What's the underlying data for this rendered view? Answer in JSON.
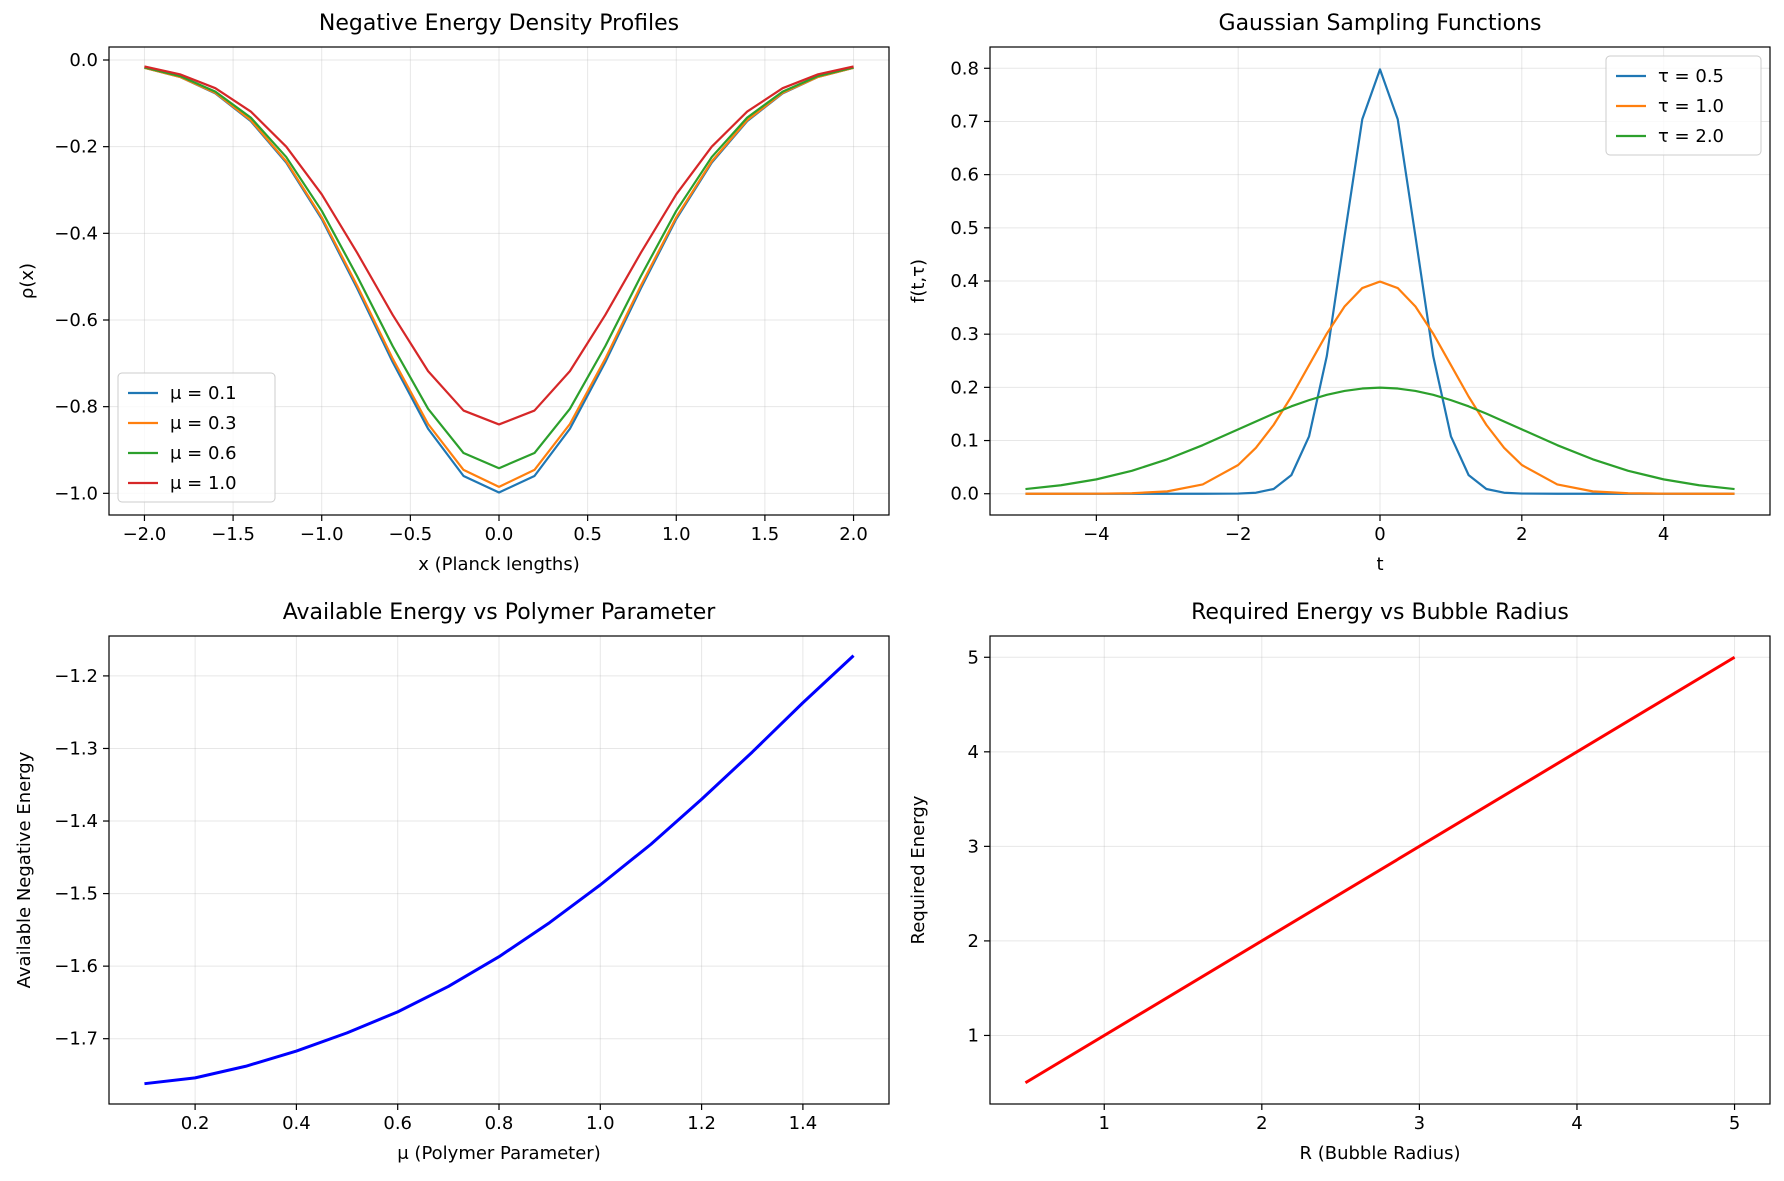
{
  "chart_data": [
    {
      "id": "p1",
      "type": "line",
      "title": "Negative Energy Density Profiles",
      "xlabel": "x (Planck lengths)",
      "ylabel": "ρ(x)",
      "xlim": [
        -2.2,
        2.2
      ],
      "ylim": [
        -1.05,
        0.03
      ],
      "xticks": [
        -2.0,
        -1.5,
        -1.0,
        -0.5,
        0.0,
        0.5,
        1.0,
        1.5,
        2.0
      ],
      "xtick_labels": [
        "−2.0",
        "−1.5",
        "−1.0",
        "−0.5",
        "0.0",
        "0.5",
        "1.0",
        "1.5",
        "2.0"
      ],
      "yticks": [
        -1.0,
        -0.8,
        -0.6,
        -0.4,
        -0.2,
        0.0
      ],
      "ytick_labels": [
        "−1.0",
        "−0.8",
        "−0.6",
        "−0.4",
        "−0.2",
        "0.0"
      ],
      "grid": true,
      "legend": "lower-left",
      "x": [
        -2.0,
        -1.8,
        -1.6,
        -1.4,
        -1.2,
        -1.0,
        -0.8,
        -0.6,
        -0.4,
        -0.2,
        0.0,
        0.2,
        0.4,
        0.6,
        0.8,
        1.0,
        1.2,
        1.4,
        1.6,
        1.8,
        2.0
      ],
      "series": [
        {
          "name": "μ = 0.1",
          "color": "#1f77b4",
          "values": [
            -0.018,
            -0.039,
            -0.077,
            -0.141,
            -0.237,
            -0.367,
            -0.527,
            -0.697,
            -0.851,
            -0.96,
            -0.998,
            -0.96,
            -0.851,
            -0.697,
            -0.527,
            -0.367,
            -0.237,
            -0.141,
            -0.077,
            -0.039,
            -0.018
          ]
        },
        {
          "name": "μ = 0.3",
          "color": "#ff7f0e",
          "values": [
            -0.018,
            -0.039,
            -0.076,
            -0.139,
            -0.234,
            -0.363,
            -0.521,
            -0.689,
            -0.84,
            -0.946,
            -0.985,
            -0.946,
            -0.84,
            -0.689,
            -0.521,
            -0.363,
            -0.234,
            -0.139,
            -0.076,
            -0.039,
            -0.018
          ]
        },
        {
          "name": "μ = 0.6",
          "color": "#2ca02c",
          "values": [
            -0.017,
            -0.037,
            -0.073,
            -0.133,
            -0.224,
            -0.348,
            -0.499,
            -0.66,
            -0.805,
            -0.907,
            -0.942,
            -0.907,
            -0.805,
            -0.66,
            -0.499,
            -0.348,
            -0.224,
            -0.133,
            -0.073,
            -0.037,
            -0.017
          ]
        },
        {
          "name": "μ = 1.0",
          "color": "#d62728",
          "values": [
            -0.015,
            -0.033,
            -0.065,
            -0.119,
            -0.2,
            -0.31,
            -0.445,
            -0.588,
            -0.718,
            -0.809,
            -0.841,
            -0.809,
            -0.718,
            -0.588,
            -0.445,
            -0.31,
            -0.2,
            -0.119,
            -0.065,
            -0.033,
            -0.015
          ]
        }
      ]
    },
    {
      "id": "p2",
      "type": "line",
      "title": "Gaussian Sampling Functions",
      "xlabel": "t",
      "ylabel": "f(t,τ)",
      "xlim": [
        -5.5,
        5.5
      ],
      "ylim": [
        -0.04,
        0.84
      ],
      "xticks": [
        -4,
        -2,
        0,
        2,
        4
      ],
      "xtick_labels": [
        "−4",
        "−2",
        "0",
        "2",
        "4"
      ],
      "yticks": [
        0.0,
        0.1,
        0.2,
        0.3,
        0.4,
        0.5,
        0.6,
        0.7,
        0.8
      ],
      "ytick_labels": [
        "0.0",
        "0.1",
        "0.2",
        "0.3",
        "0.4",
        "0.5",
        "0.6",
        "0.7",
        "0.8"
      ],
      "grid": true,
      "legend": "top-right",
      "x": [
        -5.0,
        -4.5,
        -4.0,
        -3.5,
        -3.0,
        -2.5,
        -2.0,
        -1.75,
        -1.5,
        -1.25,
        -1.0,
        -0.75,
        -0.5,
        -0.25,
        0.0,
        0.25,
        0.5,
        0.75,
        1.0,
        1.25,
        1.5,
        1.75,
        2.0,
        2.5,
        3.0,
        3.5,
        4.0,
        4.5,
        5.0
      ],
      "series": [
        {
          "name": "τ = 0.5",
          "color": "#1f77b4",
          "values": [
            0,
            0,
            0,
            0,
            0,
            0,
            0.0003,
            0.0019,
            0.0089,
            0.035,
            0.108,
            0.259,
            0.4839,
            0.7041,
            0.7979,
            0.7041,
            0.4839,
            0.259,
            0.108,
            0.035,
            0.0089,
            0.0019,
            0.0003,
            0,
            0,
            0,
            0,
            0,
            0
          ]
        },
        {
          "name": "τ = 1.0",
          "color": "#ff7f0e",
          "values": [
            0,
            0,
            0.0001,
            0.0009,
            0.0044,
            0.0175,
            0.054,
            0.0863,
            0.1295,
            0.1826,
            0.242,
            0.3011,
            0.3521,
            0.3867,
            0.3989,
            0.3867,
            0.3521,
            0.3011,
            0.242,
            0.1826,
            0.1295,
            0.0863,
            0.054,
            0.0175,
            0.0044,
            0.0009,
            0.0001,
            0,
            0
          ]
        },
        {
          "name": "τ = 2.0",
          "color": "#2ca02c",
          "values": [
            0.0088,
            0.0159,
            0.027,
            0.0431,
            0.0648,
            0.0913,
            0.121,
            0.1359,
            0.1506,
            0.1643,
            0.176,
            0.186,
            0.1933,
            0.1978,
            0.1995,
            0.1978,
            0.1933,
            0.186,
            0.176,
            0.1643,
            0.1506,
            0.1359,
            0.121,
            0.0913,
            0.0648,
            0.0431,
            0.027,
            0.0159,
            0.0088
          ]
        }
      ]
    },
    {
      "id": "p3",
      "type": "line",
      "title": "Available Energy vs Polymer Parameter",
      "xlabel": "μ (Polymer Parameter)",
      "ylabel": "Available Negative Energy",
      "xlim": [
        0.03,
        1.57
      ],
      "ylim": [
        -1.79,
        -1.145
      ],
      "xticks": [
        0.2,
        0.4,
        0.6,
        0.8,
        1.0,
        1.2,
        1.4
      ],
      "xtick_labels": [
        "0.2",
        "0.4",
        "0.6",
        "0.8",
        "1.0",
        "1.2",
        "1.4"
      ],
      "yticks": [
        -1.7,
        -1.6,
        -1.5,
        -1.4,
        -1.3,
        -1.2
      ],
      "ytick_labels": [
        "−1.7",
        "−1.6",
        "−1.5",
        "−1.4",
        "−1.3",
        "−1.2"
      ],
      "grid": true,
      "x": [
        0.1,
        0.2,
        0.3,
        0.4,
        0.5,
        0.6,
        0.7,
        0.8,
        0.9,
        1.0,
        1.1,
        1.2,
        1.3,
        1.4,
        1.5
      ],
      "series": [
        {
          "color": "#0000ff",
          "values": [
            -1.762,
            -1.754,
            -1.738,
            -1.717,
            -1.692,
            -1.663,
            -1.628,
            -1.587,
            -1.54,
            -1.488,
            -1.432,
            -1.37,
            -1.305,
            -1.237,
            -1.172
          ]
        }
      ]
    },
    {
      "id": "p4",
      "type": "line",
      "title": "Required Energy vs Bubble Radius",
      "xlabel": "R (Bubble Radius)",
      "ylabel": "Required Energy",
      "xlim": [
        0.275,
        5.225
      ],
      "ylim": [
        0.275,
        5.225
      ],
      "xticks": [
        1,
        2,
        3,
        4,
        5
      ],
      "xtick_labels": [
        "1",
        "2",
        "3",
        "4",
        "5"
      ],
      "yticks": [
        1,
        2,
        3,
        4,
        5
      ],
      "ytick_labels": [
        "1",
        "2",
        "3",
        "4",
        "5"
      ],
      "grid": true,
      "x": [
        0.5,
        5.0
      ],
      "series": [
        {
          "color": "#ff0000",
          "values": [
            0.5,
            5.0
          ]
        }
      ]
    }
  ]
}
